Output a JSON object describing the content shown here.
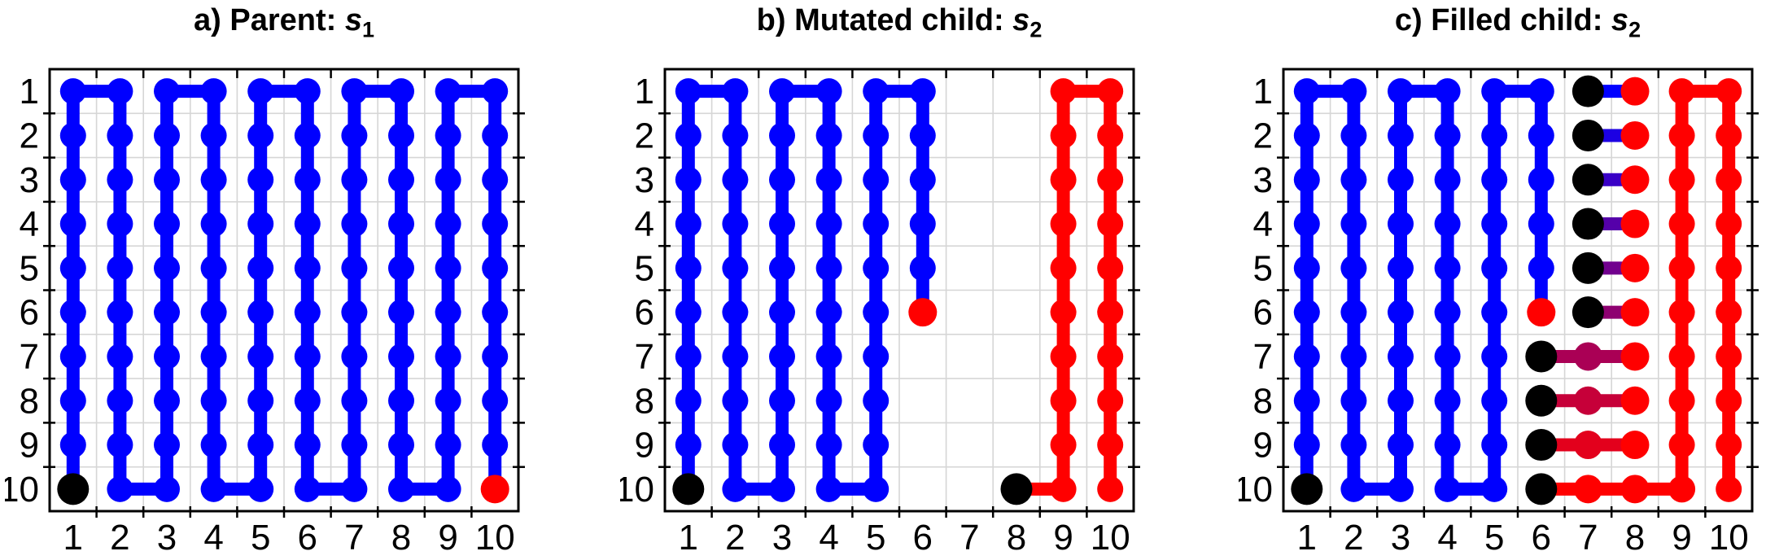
{
  "figure": {
    "background": "#FFFFFF",
    "grid_color": "#D6D6D6",
    "axis_color": "#000000",
    "path_blue": "#0000FF",
    "path_red": "#FF0000",
    "marker_black": "#000000"
  },
  "chart_data": [
    {
      "type": "scatter",
      "panel": "a",
      "title": {
        "prefix": "a) Parent: ",
        "var": "s",
        "sub": "1"
      },
      "x_ticks": [
        "1",
        "2",
        "3",
        "4",
        "5",
        "6",
        "7",
        "8",
        "9",
        "10"
      ],
      "y_ticks": [
        "1",
        "2",
        "3",
        "4",
        "5",
        "6",
        "7",
        "8",
        "9",
        "10"
      ],
      "x_range": [
        0.5,
        10.5
      ],
      "y_range": [
        0.5,
        10.5
      ],
      "y_axis_reversed": true,
      "grid": "cell-boundaries",
      "paths": [
        {
          "name": "parent-path",
          "color": "#0000FF",
          "vertices": [
            [
              1,
              10
            ],
            [
              1,
              1
            ],
            [
              2,
              1
            ],
            [
              2,
              10
            ],
            [
              3,
              10
            ],
            [
              3,
              1
            ],
            [
              4,
              1
            ],
            [
              4,
              10
            ],
            [
              5,
              10
            ],
            [
              5,
              1
            ],
            [
              6,
              1
            ],
            [
              6,
              10
            ],
            [
              7,
              10
            ],
            [
              7,
              1
            ],
            [
              8,
              1
            ],
            [
              8,
              10
            ],
            [
              9,
              10
            ],
            [
              9,
              1
            ],
            [
              10,
              1
            ],
            [
              10,
              10
            ]
          ]
        }
      ],
      "fill_segments": [],
      "markers": [
        {
          "x": 1,
          "y": 10,
          "color": "#000000",
          "role": "start"
        },
        {
          "x": 10,
          "y": 10,
          "color": "#FF0000",
          "role": "end"
        }
      ]
    },
    {
      "type": "scatter",
      "panel": "b",
      "title": {
        "prefix": "b) Mutated child: ",
        "var": "s",
        "sub": "2"
      },
      "x_ticks": [
        "1",
        "2",
        "3",
        "4",
        "5",
        "6",
        "7",
        "8",
        "9",
        "10"
      ],
      "y_ticks": [
        "1",
        "2",
        "3",
        "4",
        "5",
        "6",
        "7",
        "8",
        "9",
        "10"
      ],
      "x_range": [
        0.5,
        10.5
      ],
      "y_range": [
        0.5,
        10.5
      ],
      "y_axis_reversed": true,
      "grid": "cell-boundaries",
      "paths": [
        {
          "name": "child-blue-path",
          "color": "#0000FF",
          "vertices": [
            [
              1,
              10
            ],
            [
              1,
              1
            ],
            [
              2,
              1
            ],
            [
              2,
              10
            ],
            [
              3,
              10
            ],
            [
              3,
              1
            ],
            [
              4,
              1
            ],
            [
              4,
              10
            ],
            [
              5,
              10
            ],
            [
              5,
              1
            ],
            [
              6,
              1
            ],
            [
              6,
              6
            ]
          ]
        },
        {
          "name": "child-red-path",
          "color": "#FF0000",
          "vertices": [
            [
              8,
              10
            ],
            [
              9,
              10
            ],
            [
              9,
              1
            ],
            [
              10,
              1
            ],
            [
              10,
              10
            ]
          ]
        }
      ],
      "fill_segments": [],
      "markers": [
        {
          "x": 1,
          "y": 10,
          "color": "#000000",
          "role": "blue-start"
        },
        {
          "x": 6,
          "y": 6,
          "color": "#FF0000",
          "role": "blue-end"
        },
        {
          "x": 8,
          "y": 10,
          "color": "#000000",
          "role": "red-start"
        }
      ]
    },
    {
      "type": "scatter",
      "panel": "c",
      "title": {
        "prefix": "c) Filled child: ",
        "var": "s",
        "sub": "2"
      },
      "x_ticks": [
        "1",
        "2",
        "3",
        "4",
        "5",
        "6",
        "7",
        "8",
        "9",
        "10"
      ],
      "y_ticks": [
        "1",
        "2",
        "3",
        "4",
        "5",
        "6",
        "7",
        "8",
        "9",
        "10"
      ],
      "x_range": [
        0.5,
        10.5
      ],
      "y_range": [
        0.5,
        10.5
      ],
      "y_axis_reversed": true,
      "grid": "cell-boundaries",
      "paths": [
        {
          "name": "child-blue-path",
          "color": "#0000FF",
          "vertices": [
            [
              1,
              10
            ],
            [
              1,
              1
            ],
            [
              2,
              1
            ],
            [
              2,
              10
            ],
            [
              3,
              10
            ],
            [
              3,
              1
            ],
            [
              4,
              1
            ],
            [
              4,
              10
            ],
            [
              5,
              10
            ],
            [
              5,
              1
            ],
            [
              6,
              1
            ],
            [
              6,
              6
            ]
          ]
        },
        {
          "name": "child-red-path",
          "color": "#FF0000",
          "vertices": [
            [
              9,
              10
            ],
            [
              9,
              1
            ],
            [
              10,
              1
            ],
            [
              10,
              10
            ]
          ]
        }
      ],
      "fill_segments": [
        {
          "row": 1,
          "x1": 7,
          "x2": 8,
          "color": "#0000FF"
        },
        {
          "row": 2,
          "x1": 7,
          "x2": 8,
          "color": "#1C00E3"
        },
        {
          "row": 3,
          "x1": 7,
          "x2": 8,
          "color": "#3900C6"
        },
        {
          "row": 4,
          "x1": 7,
          "x2": 8,
          "color": "#5500AA"
        },
        {
          "row": 5,
          "x1": 7,
          "x2": 8,
          "color": "#71008E"
        },
        {
          "row": 6,
          "x1": 7,
          "x2": 8,
          "color": "#8E0071"
        },
        {
          "row": 7,
          "x1": 6,
          "x2": 8,
          "color": "#AA0055"
        },
        {
          "row": 8,
          "x1": 6,
          "x2": 8,
          "color": "#C60039"
        },
        {
          "row": 9,
          "x1": 6,
          "x2": 8,
          "color": "#E3001C"
        },
        {
          "row": 10,
          "x1": 6,
          "x2": 9,
          "color": "#FF0000"
        }
      ],
      "markers": [
        {
          "x": 1,
          "y": 10,
          "color": "#000000",
          "role": "blue-start"
        },
        {
          "x": 6,
          "y": 6,
          "color": "#FF0000",
          "role": "blue-end"
        },
        {
          "x": 7,
          "y": 1,
          "color": "#000000",
          "role": "fill-start"
        },
        {
          "x": 8,
          "y": 1,
          "color": "#FF0000",
          "role": "fill-end"
        },
        {
          "x": 7,
          "y": 2,
          "color": "#000000",
          "role": "fill-start"
        },
        {
          "x": 8,
          "y": 2,
          "color": "#FF0000",
          "role": "fill-end"
        },
        {
          "x": 7,
          "y": 3,
          "color": "#000000",
          "role": "fill-start"
        },
        {
          "x": 8,
          "y": 3,
          "color": "#FF0000",
          "role": "fill-end"
        },
        {
          "x": 7,
          "y": 4,
          "color": "#000000",
          "role": "fill-start"
        },
        {
          "x": 8,
          "y": 4,
          "color": "#FF0000",
          "role": "fill-end"
        },
        {
          "x": 7,
          "y": 5,
          "color": "#000000",
          "role": "fill-start"
        },
        {
          "x": 8,
          "y": 5,
          "color": "#FF0000",
          "role": "fill-end"
        },
        {
          "x": 7,
          "y": 6,
          "color": "#000000",
          "role": "fill-start"
        },
        {
          "x": 8,
          "y": 6,
          "color": "#FF0000",
          "role": "fill-end"
        },
        {
          "x": 6,
          "y": 7,
          "color": "#000000",
          "role": "fill-start"
        },
        {
          "x": 7,
          "y": 7,
          "color": "#AA0055",
          "role": "fill-mid"
        },
        {
          "x": 8,
          "y": 7,
          "color": "#FF0000",
          "role": "fill-end"
        },
        {
          "x": 6,
          "y": 8,
          "color": "#000000",
          "role": "fill-start"
        },
        {
          "x": 7,
          "y": 8,
          "color": "#C60039",
          "role": "fill-mid"
        },
        {
          "x": 8,
          "y": 8,
          "color": "#FF0000",
          "role": "fill-end"
        },
        {
          "x": 6,
          "y": 9,
          "color": "#000000",
          "role": "fill-start"
        },
        {
          "x": 7,
          "y": 9,
          "color": "#E3001C",
          "role": "fill-mid"
        },
        {
          "x": 8,
          "y": 9,
          "color": "#FF0000",
          "role": "fill-end"
        },
        {
          "x": 6,
          "y": 10,
          "color": "#000000",
          "role": "fill-start"
        },
        {
          "x": 7,
          "y": 10,
          "color": "#FF0000",
          "role": "fill-mid"
        },
        {
          "x": 8,
          "y": 10,
          "color": "#FF0000",
          "role": "fill-mid"
        }
      ]
    }
  ]
}
